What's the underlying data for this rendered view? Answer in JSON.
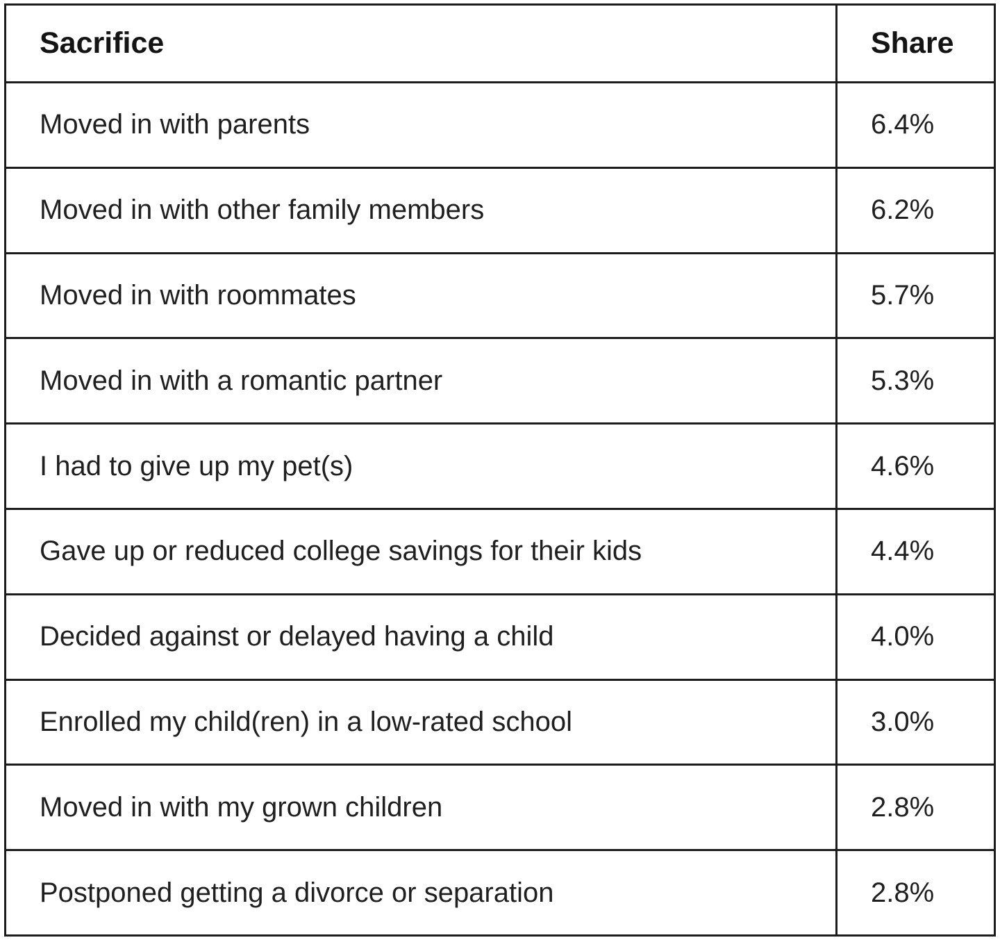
{
  "colors": {
    "border": "#1c1c1c",
    "text": "#1f1f1f",
    "background": "#ffffff"
  },
  "table": {
    "columns": [
      {
        "label": "Sacrifice"
      },
      {
        "label": "Share"
      }
    ],
    "rows": [
      {
        "sacrifice": "Moved in with parents",
        "share": "6.4%"
      },
      {
        "sacrifice": "Moved in with other family members",
        "share": "6.2%"
      },
      {
        "sacrifice": "Moved in with roommates",
        "share": "5.7%"
      },
      {
        "sacrifice": "Moved in with a romantic partner",
        "share": "5.3%"
      },
      {
        "sacrifice": "I had to give up my pet(s)",
        "share": "4.6%"
      },
      {
        "sacrifice": "Gave up or reduced college savings for their kids",
        "share": "4.4%"
      },
      {
        "sacrifice": "Decided against or delayed having a child",
        "share": "4.0%"
      },
      {
        "sacrifice": "Enrolled my child(ren) in a low-rated school",
        "share": "3.0%"
      },
      {
        "sacrifice": "Moved in with my grown children",
        "share": "2.8%"
      },
      {
        "sacrifice": "Postponed getting a divorce or separation",
        "share": "2.8%"
      }
    ]
  },
  "chart_data": {
    "type": "table",
    "title": "",
    "columns": [
      "Sacrifice",
      "Share"
    ],
    "categories": [
      "Moved in with parents",
      "Moved in with other family members",
      "Moved in with roommates",
      "Moved in with a romantic partner",
      "I had to give up my pet(s)",
      "Gave up or reduced college savings for their kids",
      "Decided against or delayed having a child",
      "Enrolled my child(ren) in a low-rated school",
      "Moved in with my grown children",
      "Postponed getting a divorce or separation"
    ],
    "values": [
      6.4,
      6.2,
      5.7,
      5.3,
      4.6,
      4.4,
      4.0,
      3.0,
      2.8,
      2.8
    ],
    "value_unit": "percent"
  }
}
